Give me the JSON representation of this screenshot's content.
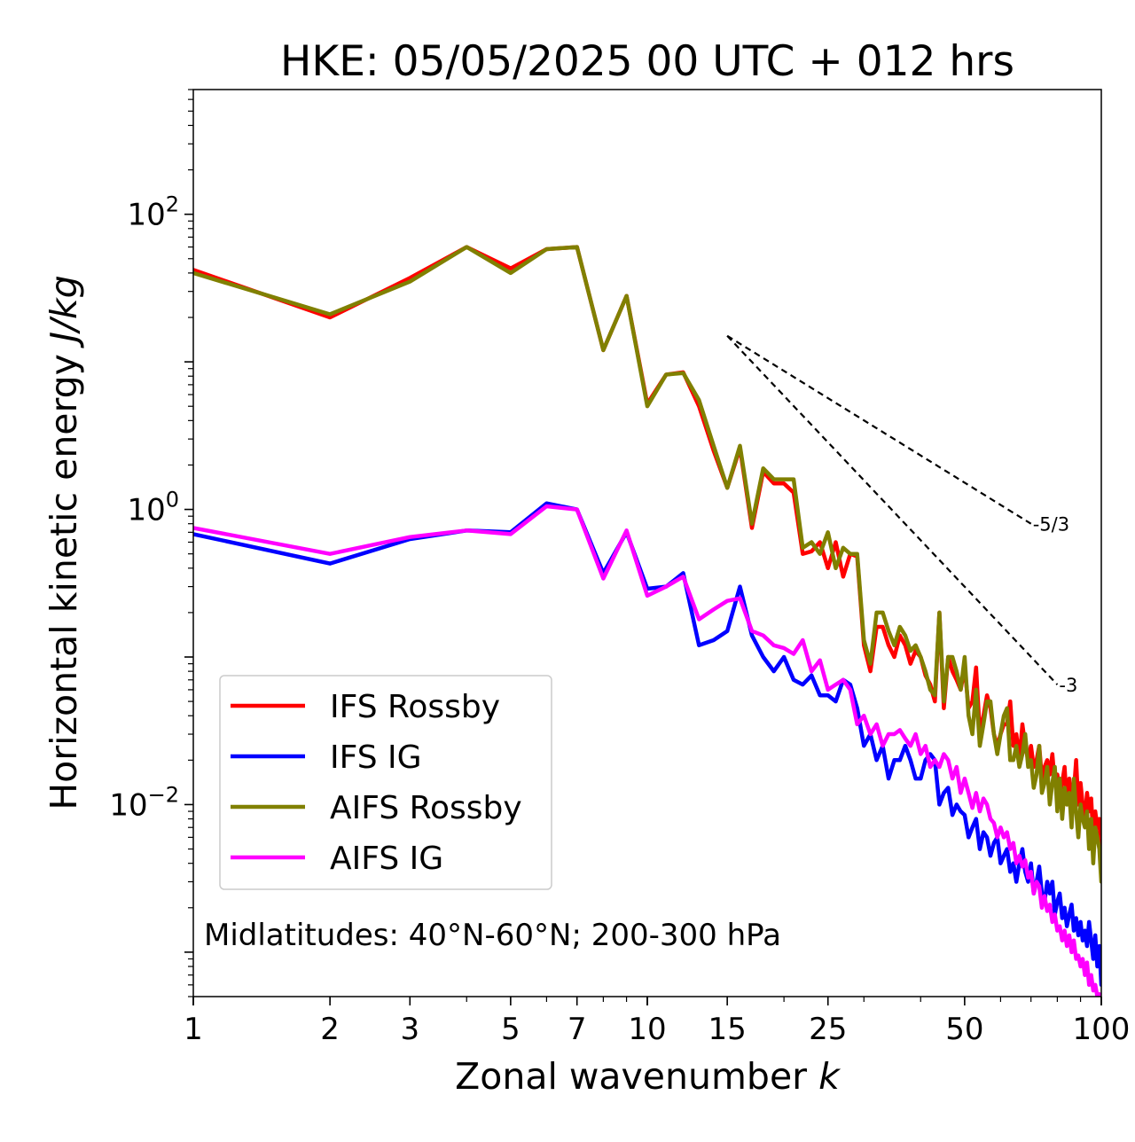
{
  "chart_data": {
    "type": "line",
    "title": "HKE: 05/05/2025 00 UTC + 012 hrs",
    "xlabel": "Zonal wavenumber ",
    "xlabel_italic": "k",
    "ylabel": "Horizontal kinetic energy ",
    "ylabel_italic": "J/kg",
    "x_scale": "log",
    "y_scale": "log",
    "xlim": [
      1,
      100
    ],
    "ylim": [
      0.0005,
      700
    ],
    "x_ticks": [
      1,
      2,
      3,
      5,
      7,
      10,
      15,
      25,
      50,
      100
    ],
    "x_tick_labels": [
      "1",
      "2",
      "3",
      "5",
      "7",
      "10",
      "15",
      "25",
      "50",
      "100"
    ],
    "y_ticks": [
      0.01,
      1,
      100
    ],
    "y_tick_labels": [
      {
        "base": "10",
        "exp": "−2"
      },
      {
        "base": "10",
        "exp": "0"
      },
      {
        "base": "10",
        "exp": "2"
      }
    ],
    "grid": false,
    "legend_position": "lower-left",
    "annotation": "Midlatitudes: 40°N-60°N; 200-300 hPa",
    "reference_lines": [
      {
        "label": "-5/3",
        "slope": -1.6667,
        "x": [
          15,
          70
        ],
        "y": [
          15,
          0.8
        ]
      },
      {
        "label": "-3",
        "slope": -3,
        "x": [
          15,
          80
        ],
        "y": [
          15,
          0.065
        ]
      }
    ],
    "series": [
      {
        "name": "IFS Rossby",
        "color": "#ff0000",
        "x": [
          1,
          2,
          3,
          4,
          5,
          6,
          7,
          8,
          9,
          10,
          11,
          12,
          13,
          14,
          15,
          16,
          17,
          18,
          19,
          20,
          21,
          22,
          23,
          24,
          25,
          26,
          27,
          28,
          29,
          30,
          31,
          32,
          33,
          34,
          35,
          36,
          37,
          38,
          39,
          40,
          41,
          42,
          43,
          44,
          45,
          46,
          47,
          48,
          49,
          50,
          51,
          52,
          53,
          54,
          55,
          56,
          57,
          58,
          59,
          60,
          61,
          62,
          63,
          64,
          65,
          66,
          67,
          68,
          69,
          70,
          71,
          72,
          73,
          74,
          75,
          76,
          77,
          78,
          79,
          80,
          81,
          82,
          83,
          84,
          85,
          86,
          87,
          88,
          89,
          90,
          91,
          92,
          93,
          94,
          95,
          96,
          97,
          98,
          99,
          100
        ],
        "y": [
          42,
          20,
          37,
          60,
          43,
          58,
          60,
          12,
          28,
          5.2,
          8.2,
          8.5,
          5,
          2.5,
          1.4,
          2.6,
          0.75,
          1.8,
          1.5,
          1.5,
          1.3,
          0.5,
          0.52,
          0.6,
          0.4,
          0.6,
          0.35,
          0.5,
          0.48,
          0.12,
          0.08,
          0.16,
          0.16,
          0.12,
          0.1,
          0.14,
          0.12,
          0.09,
          0.11,
          0.1,
          0.075,
          0.065,
          0.05,
          0.2,
          0.045,
          0.1,
          0.08,
          0.07,
          0.06,
          0.085,
          0.045,
          0.05,
          0.085,
          0.03,
          0.04,
          0.055,
          0.045,
          0.03,
          0.025,
          0.03,
          0.035,
          0.035,
          0.05,
          0.025,
          0.03,
          0.02,
          0.035,
          0.025,
          0.02,
          0.025,
          0.018,
          0.02,
          0.025,
          0.015,
          0.018,
          0.02,
          0.016,
          0.022,
          0.014,
          0.016,
          0.012,
          0.014,
          0.018,
          0.01,
          0.015,
          0.009,
          0.012,
          0.02,
          0.01,
          0.014,
          0.01,
          0.008,
          0.012,
          0.009,
          0.011,
          0.006,
          0.009,
          0.007,
          0.008,
          0.004
        ]
      },
      {
        "name": "IFS IG",
        "color": "#0000ff",
        "x": [
          1,
          2,
          3,
          4,
          5,
          6,
          7,
          8,
          9,
          10,
          11,
          12,
          13,
          14,
          15,
          16,
          17,
          18,
          19,
          20,
          21,
          22,
          23,
          24,
          25,
          26,
          27,
          28,
          29,
          30,
          31,
          32,
          33,
          34,
          35,
          36,
          37,
          38,
          39,
          40,
          41,
          42,
          43,
          44,
          45,
          46,
          47,
          48,
          49,
          50,
          51,
          52,
          53,
          54,
          55,
          56,
          57,
          58,
          59,
          60,
          61,
          62,
          63,
          64,
          65,
          66,
          67,
          68,
          69,
          70,
          71,
          72,
          73,
          74,
          75,
          76,
          77,
          78,
          79,
          80,
          81,
          82,
          83,
          84,
          85,
          86,
          87,
          88,
          89,
          90,
          91,
          92,
          93,
          94,
          95,
          96,
          97,
          98,
          99,
          100
        ],
        "y": [
          0.68,
          0.43,
          0.63,
          0.72,
          0.7,
          1.1,
          1,
          0.37,
          0.7,
          0.29,
          0.3,
          0.37,
          0.12,
          0.13,
          0.15,
          0.3,
          0.14,
          0.1,
          0.08,
          0.1,
          0.07,
          0.065,
          0.075,
          0.055,
          0.055,
          0.05,
          0.07,
          0.065,
          0.045,
          0.025,
          0.03,
          0.02,
          0.025,
          0.015,
          0.02,
          0.02,
          0.025,
          0.02,
          0.015,
          0.015,
          0.02,
          0.022,
          0.02,
          0.01,
          0.012,
          0.013,
          0.0085,
          0.01,
          0.009,
          0.0085,
          0.006,
          0.007,
          0.008,
          0.005,
          0.0065,
          0.006,
          0.0045,
          0.0055,
          0.006,
          0.004,
          0.0045,
          0.005,
          0.0035,
          0.004,
          0.003,
          0.004,
          0.005,
          0.0035,
          0.003,
          0.004,
          0.0025,
          0.003,
          0.0038,
          0.0025,
          0.0022,
          0.003,
          0.0025,
          0.003,
          0.0018,
          0.0022,
          0.0025,
          0.0017,
          0.002,
          0.0015,
          0.0018,
          0.0021,
          0.0014,
          0.0017,
          0.0013,
          0.0016,
          0.0012,
          0.0014,
          0.0011,
          0.0016,
          0.0012,
          0.0009,
          0.0013,
          0.0008,
          0.0011,
          0.0006
        ]
      },
      {
        "name": "AIFS Rossby",
        "color": "#808000",
        "x": [
          1,
          2,
          3,
          4,
          5,
          6,
          7,
          8,
          9,
          10,
          11,
          12,
          13,
          14,
          15,
          16,
          17,
          18,
          19,
          20,
          21,
          22,
          23,
          24,
          25,
          26,
          27,
          28,
          29,
          30,
          31,
          32,
          33,
          34,
          35,
          36,
          37,
          38,
          39,
          40,
          41,
          42,
          43,
          44,
          45,
          46,
          47,
          48,
          49,
          50,
          51,
          52,
          53,
          54,
          55,
          56,
          57,
          58,
          59,
          60,
          61,
          62,
          63,
          64,
          65,
          66,
          67,
          68,
          69,
          70,
          71,
          72,
          73,
          74,
          75,
          76,
          77,
          78,
          79,
          80,
          81,
          82,
          83,
          84,
          85,
          86,
          87,
          88,
          89,
          90,
          91,
          92,
          93,
          94,
          95,
          96,
          97,
          98,
          99,
          100
        ],
        "y": [
          40,
          21,
          35,
          60,
          40,
          58,
          60,
          12,
          28,
          5,
          8.2,
          8.4,
          5.5,
          2.7,
          1.4,
          2.7,
          0.8,
          1.9,
          1.6,
          1.6,
          1.6,
          0.55,
          0.6,
          0.5,
          0.7,
          0.4,
          0.55,
          0.5,
          0.5,
          0.13,
          0.09,
          0.2,
          0.2,
          0.15,
          0.12,
          0.16,
          0.14,
          0.11,
          0.12,
          0.1,
          0.08,
          0.06,
          0.055,
          0.2,
          0.05,
          0.1,
          0.1,
          0.08,
          0.06,
          0.1,
          0.04,
          0.03,
          0.06,
          0.025,
          0.035,
          0.05,
          0.05,
          0.03,
          0.022,
          0.03,
          0.04,
          0.045,
          0.02,
          0.02,
          0.025,
          0.018,
          0.022,
          0.03,
          0.018,
          0.02,
          0.013,
          0.016,
          0.025,
          0.012,
          0.014,
          0.018,
          0.01,
          0.014,
          0.018,
          0.009,
          0.015,
          0.008,
          0.013,
          0.01,
          0.012,
          0.007,
          0.015,
          0.009,
          0.006,
          0.01,
          0.008,
          0.007,
          0.009,
          0.005,
          0.008,
          0.004,
          0.007,
          0.006,
          0.005,
          0.003
        ]
      },
      {
        "name": "AIFS IG",
        "color": "#ff00ff",
        "x": [
          1,
          2,
          3,
          4,
          5,
          6,
          7,
          8,
          9,
          10,
          11,
          12,
          13,
          14,
          15,
          16,
          17,
          18,
          19,
          20,
          21,
          22,
          23,
          24,
          25,
          26,
          27,
          28,
          29,
          30,
          31,
          32,
          33,
          34,
          35,
          36,
          37,
          38,
          39,
          40,
          41,
          42,
          43,
          44,
          45,
          46,
          47,
          48,
          49,
          50,
          51,
          52,
          53,
          54,
          55,
          56,
          57,
          58,
          59,
          60,
          61,
          62,
          63,
          64,
          65,
          66,
          67,
          68,
          69,
          70,
          71,
          72,
          73,
          74,
          75,
          76,
          77,
          78,
          79,
          80,
          81,
          82,
          83,
          84,
          85,
          86,
          87,
          88,
          89,
          90,
          91,
          92,
          93,
          94,
          95,
          96,
          97,
          98,
          99,
          100
        ],
        "y": [
          0.75,
          0.5,
          0.65,
          0.72,
          0.68,
          1.05,
          1,
          0.34,
          0.72,
          0.26,
          0.3,
          0.35,
          0.18,
          0.21,
          0.24,
          0.25,
          0.15,
          0.14,
          0.12,
          0.115,
          0.105,
          0.13,
          0.08,
          0.095,
          0.06,
          0.065,
          0.07,
          0.06,
          0.035,
          0.04,
          0.03,
          0.035,
          0.025,
          0.03,
          0.03,
          0.032,
          0.028,
          0.025,
          0.03,
          0.022,
          0.025,
          0.018,
          0.02,
          0.018,
          0.022,
          0.02,
          0.015,
          0.018,
          0.012,
          0.015,
          0.012,
          0.0095,
          0.012,
          0.009,
          0.011,
          0.01,
          0.008,
          0.0075,
          0.006,
          0.007,
          0.006,
          0.0065,
          0.005,
          0.0055,
          0.004,
          0.0045,
          0.0038,
          0.0042,
          0.0032,
          0.0035,
          0.0025,
          0.003,
          0.0028,
          0.002,
          0.0024,
          0.0019,
          0.0021,
          0.0016,
          0.0018,
          0.0014,
          0.0015,
          0.0012,
          0.0014,
          0.0011,
          0.0013,
          0.001,
          0.0012,
          0.0009,
          0.00095,
          0.0008,
          0.0009,
          0.0007,
          0.00085,
          0.0006,
          0.0007,
          0.00055,
          0.0006,
          0.0005,
          0.00052,
          0.00045
        ]
      }
    ]
  }
}
